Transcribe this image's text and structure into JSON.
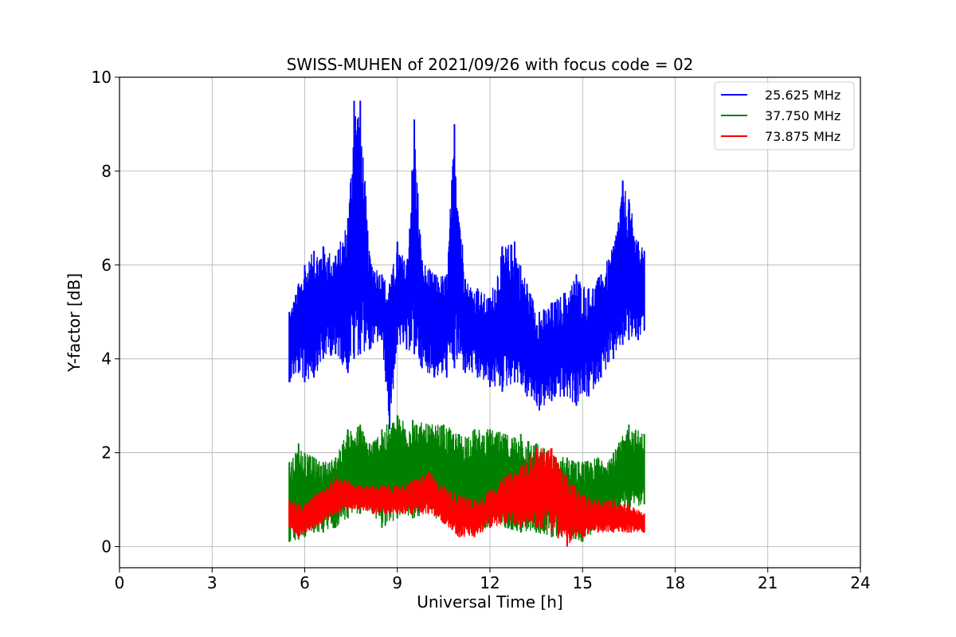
{
  "chart_data": {
    "type": "line",
    "title": "SWISS-MUHEN of 2021/09/26 with focus code = 02",
    "xlabel": "Universal Time [h]",
    "ylabel": "Y-factor [dB]",
    "xlim": [
      0,
      24
    ],
    "ylim": [
      -0.45,
      10
    ],
    "xticks": [
      0,
      3,
      6,
      9,
      12,
      15,
      18,
      21,
      24
    ],
    "yticks": [
      0,
      2,
      4,
      6,
      8,
      10
    ],
    "grid": true,
    "legend_position": "top-right",
    "series": [
      {
        "name": "25.625 MHz",
        "color": "#0000ff",
        "x": [
          5.5,
          5.8,
          6.0,
          6.3,
          6.6,
          7.0,
          7.4,
          7.6,
          7.8,
          8.1,
          8.5,
          8.75,
          9.0,
          9.3,
          9.55,
          9.8,
          10.2,
          10.6,
          10.85,
          11.2,
          11.6,
          12.0,
          12.4,
          12.8,
          13.2,
          13.6,
          14.0,
          14.4,
          14.8,
          15.2,
          15.6,
          16.0,
          16.3,
          16.5,
          16.8,
          17.0
        ],
        "lower": [
          3.5,
          3.7,
          3.5,
          3.6,
          4.0,
          4.1,
          3.7,
          4.0,
          4.1,
          4.2,
          4.4,
          2.5,
          4.3,
          4.2,
          4.1,
          3.8,
          3.6,
          3.6,
          3.8,
          3.7,
          3.6,
          3.4,
          3.3,
          3.5,
          3.2,
          2.9,
          3.1,
          3.2,
          3.0,
          3.2,
          3.6,
          4.0,
          4.3,
          4.4,
          4.4,
          4.6
        ],
        "upper": [
          5.0,
          5.6,
          6.0,
          6.3,
          6.4,
          6.2,
          7.0,
          9.5,
          9.5,
          6.2,
          5.8,
          5.6,
          6.5,
          6.0,
          9.1,
          6.1,
          5.8,
          5.8,
          9.0,
          5.7,
          5.5,
          5.3,
          6.4,
          6.5,
          5.6,
          5.0,
          5.2,
          5.4,
          5.8,
          5.5,
          5.8,
          6.4,
          7.8,
          7.4,
          6.5,
          6.3
        ]
      },
      {
        "name": "37.750 MHz",
        "color": "#008000",
        "x": [
          5.5,
          5.8,
          6.0,
          6.3,
          6.6,
          7.0,
          7.4,
          7.8,
          8.1,
          8.5,
          9.0,
          9.5,
          10.0,
          10.5,
          11.0,
          11.5,
          12.0,
          12.5,
          13.0,
          13.5,
          14.0,
          14.5,
          15.0,
          15.5,
          16.0,
          16.5,
          17.0
        ],
        "lower": [
          0.1,
          0.15,
          0.2,
          0.3,
          0.3,
          0.4,
          0.6,
          0.7,
          0.8,
          0.4,
          0.6,
          0.6,
          0.7,
          0.5,
          0.5,
          0.4,
          0.4,
          0.4,
          0.3,
          0.3,
          0.2,
          0.2,
          0.1,
          0.4,
          0.6,
          0.8,
          0.9
        ],
        "upper": [
          1.8,
          2.2,
          2.0,
          1.9,
          1.8,
          1.9,
          2.5,
          2.6,
          2.2,
          2.5,
          2.8,
          2.7,
          2.6,
          2.6,
          2.4,
          2.5,
          2.5,
          2.4,
          2.4,
          2.2,
          2.0,
          1.9,
          1.8,
          1.9,
          2.0,
          2.6,
          2.4
        ]
      },
      {
        "name": "73.875 MHz",
        "color": "#ff0000",
        "x": [
          5.5,
          5.8,
          6.0,
          6.3,
          6.6,
          7.0,
          7.4,
          7.8,
          8.2,
          8.6,
          9.0,
          9.5,
          10.0,
          10.5,
          11.0,
          11.5,
          12.0,
          12.5,
          13.0,
          13.5,
          14.0,
          14.5,
          15.0,
          15.5,
          16.0,
          16.5,
          17.0
        ],
        "lower": [
          0.4,
          0.2,
          0.3,
          0.4,
          0.5,
          0.7,
          0.8,
          0.8,
          0.7,
          0.7,
          0.7,
          0.7,
          0.7,
          0.5,
          0.2,
          0.2,
          0.4,
          0.5,
          0.4,
          0.4,
          0.3,
          0.0,
          0.2,
          0.3,
          0.3,
          0.3,
          0.3
        ],
        "upper": [
          1.0,
          0.9,
          0.9,
          1.1,
          1.2,
          1.5,
          1.4,
          1.3,
          1.3,
          1.3,
          1.3,
          1.4,
          1.6,
          1.3,
          1.1,
          1.0,
          1.2,
          1.5,
          1.7,
          2.1,
          2.1,
          1.5,
          1.1,
          1.0,
          1.0,
          0.9,
          0.7
        ]
      }
    ]
  }
}
